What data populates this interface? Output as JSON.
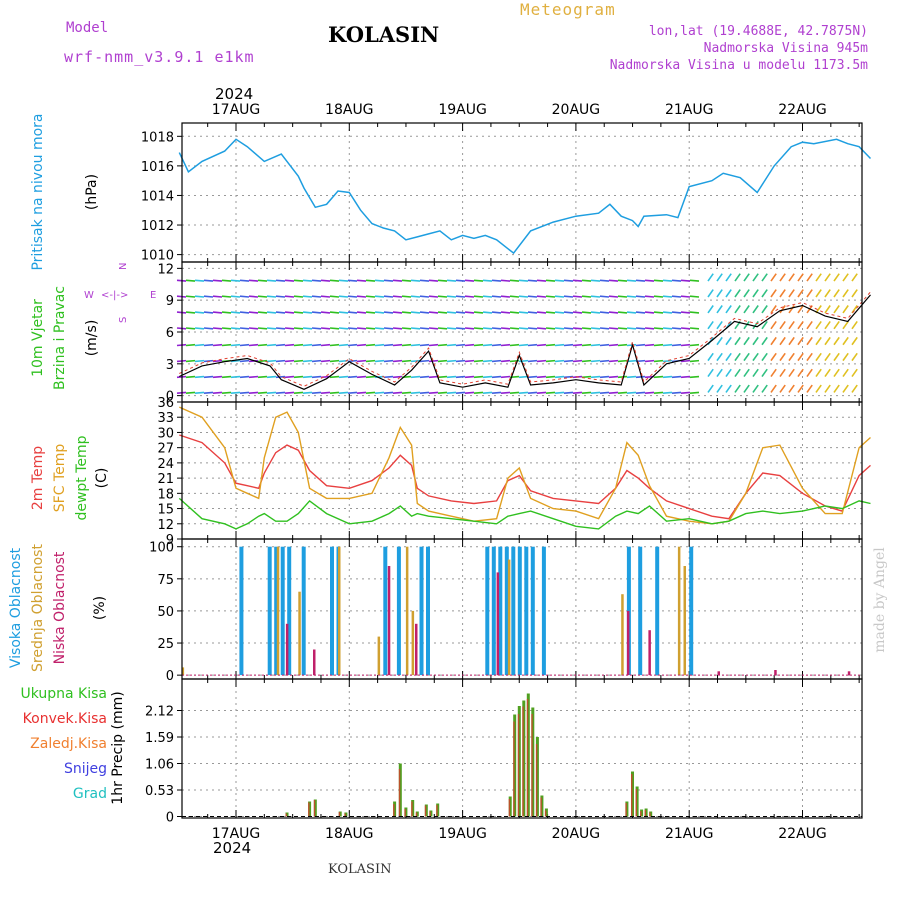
{
  "header": {
    "model_label": "Model",
    "model_name": "wrf-nmm_v3.9.1 e1km",
    "station": "KOLASIN",
    "meteogram_label": "Meteogram",
    "lonlat": "lon,lat (19.4688E, 42.7875N)",
    "elevation": "Nadmorska Visina 945m",
    "model_elevation": "Nadmorska Visina u modelu 1173.5m",
    "year": "2024"
  },
  "footer": {
    "station": "KOLASIN",
    "year": "2024",
    "credit": "made by Angel"
  },
  "x_dates": [
    "17AUG",
    "18AUG",
    "19AUG",
    "20AUG",
    "21AUG",
    "22AUG"
  ],
  "panel_labels": {
    "pressure": [
      "Pritisak na nivou mora",
      "(hPa)"
    ],
    "wind": [
      "10m Vjetar",
      "Brzina i Pravac",
      "(m/s)"
    ],
    "compass": [
      "W",
      "<",
      "-",
      "|",
      "-",
      ">",
      "E",
      "N",
      "S"
    ],
    "temp": [
      "2m Temp",
      "SFC Temp",
      "dewpt Temp",
      "(C)"
    ],
    "cloud": [
      "Visoka Oblacnost",
      "Srednja Oblacnost",
      "Niska Oblacnost",
      "(%)"
    ],
    "precip_legend": [
      "Ukupna Kisa",
      "Konvek.Kisa",
      "Zaledj.Kisa",
      "Snijeg",
      "Grad"
    ],
    "precip_axis": "1hr Precip (mm)"
  },
  "colors": {
    "pressure": "#1e9ee0",
    "temp2m": "#e84040",
    "sfc": "#e0a020",
    "dew": "#30c020",
    "cloud_high": "#1e9ee0",
    "cloud_mid": "#d0a030",
    "cloud_low": "#c0206a",
    "precip_total": "#50a020",
    "precip_conv": "#e83030",
    "precip_frozen": "#f08030",
    "snow": "#4040e0",
    "hail": "#20c0c0",
    "model": "#b040d0",
    "meteogram": "#e0b040"
  },
  "chart_data": [
    {
      "type": "line",
      "title": "Pritisak na nivou mora",
      "ylabel": "(hPa)",
      "ylim": [
        1009.5,
        1018.9
      ],
      "yticks": [
        1010,
        1012,
        1014,
        1016,
        1018
      ],
      "x_day": [
        -0.5,
        -0.42,
        -0.3,
        -0.1,
        0.0,
        0.1,
        0.25,
        0.4,
        0.55,
        0.6,
        0.7,
        0.8,
        0.9,
        1.0,
        1.1,
        1.2,
        1.3,
        1.4,
        1.5,
        1.6,
        1.7,
        1.8,
        1.9,
        2.0,
        2.1,
        2.2,
        2.3,
        2.4,
        2.45,
        2.6,
        2.8,
        3.0,
        3.2,
        3.3,
        3.4,
        3.5,
        3.55,
        3.6,
        3.8,
        3.9,
        4.0,
        4.2,
        4.3,
        4.45,
        4.6,
        4.75,
        4.9,
        5.0,
        5.1,
        5.3,
        5.4,
        5.5,
        5.6
      ],
      "series": [
        {
          "values": [
            1016.9,
            1015.6,
            1016.3,
            1017.0,
            1017.8,
            1017.3,
            1016.3,
            1016.8,
            1015.3,
            1014.5,
            1013.2,
            1013.4,
            1014.3,
            1014.2,
            1013.0,
            1012.1,
            1011.8,
            1011.6,
            1011.0,
            1011.2,
            1011.4,
            1011.6,
            1011.0,
            1011.3,
            1011.1,
            1011.3,
            1011.0,
            1010.4,
            1010.1,
            1011.6,
            1012.2,
            1012.6,
            1012.8,
            1013.4,
            1012.6,
            1012.3,
            1011.9,
            1012.6,
            1012.7,
            1012.5,
            1014.6,
            1015.0,
            1015.5,
            1015.2,
            1014.2,
            1016.0,
            1017.3,
            1017.6,
            1017.5,
            1017.8,
            1017.5,
            1017.3,
            1016.5
          ]
        }
      ]
    },
    {
      "type": "line",
      "title": "10m Vjetar Brzina i Pravac",
      "ylabel": "(m/s)",
      "ylim": [
        -0.6,
        12.6
      ],
      "yticks": [
        0,
        3,
        6,
        9,
        12
      ],
      "x_day": [
        -0.5,
        -0.3,
        -0.1,
        0.1,
        0.3,
        0.4,
        0.6,
        0.8,
        1.0,
        1.2,
        1.4,
        1.55,
        1.7,
        1.8,
        2.0,
        2.2,
        2.4,
        2.5,
        2.6,
        2.8,
        3.0,
        3.2,
        3.4,
        3.5,
        3.6,
        3.8,
        4.0,
        4.2,
        4.4,
        4.6,
        4.8,
        5.0,
        5.2,
        5.4,
        5.6
      ],
      "series": [
        {
          "values": [
            1.8,
            2.8,
            3.2,
            3.5,
            2.8,
            1.5,
            0.6,
            1.6,
            3.2,
            2.0,
            1.0,
            2.4,
            4.2,
            1.2,
            0.8,
            1.2,
            0.8,
            3.8,
            1.0,
            1.2,
            1.5,
            1.2,
            1.0,
            4.8,
            1.0,
            3.0,
            3.5,
            5.2,
            7.0,
            6.5,
            8.0,
            8.5,
            7.5,
            7.0,
            9.5
          ]
        }
      ]
    },
    {
      "type": "line",
      "title": "2m Temp / SFC Temp / dewpt Temp",
      "ylabel": "(C)",
      "ylim": [
        9,
        36
      ],
      "yticks": [
        9,
        12,
        15,
        18,
        21,
        24,
        27,
        30,
        33,
        36
      ],
      "x_day": [
        -0.5,
        -0.3,
        -0.1,
        0.0,
        0.1,
        0.2,
        0.25,
        0.35,
        0.45,
        0.55,
        0.65,
        0.8,
        1.0,
        1.2,
        1.35,
        1.45,
        1.55,
        1.6,
        1.7,
        1.9,
        2.1,
        2.3,
        2.4,
        2.5,
        2.6,
        2.8,
        3.0,
        3.2,
        3.35,
        3.45,
        3.55,
        3.65,
        3.8,
        4.0,
        4.2,
        4.35,
        4.5,
        4.65,
        4.8,
        5.0,
        5.2,
        5.35,
        5.5,
        5.6
      ],
      "series": [
        {
          "name": "2m Temp",
          "values": [
            29.5,
            28.0,
            24.0,
            20.0,
            19.5,
            19.0,
            22.0,
            26.0,
            27.5,
            26.5,
            22.5,
            19.5,
            19.0,
            20.5,
            23.0,
            25.5,
            23.5,
            19.0,
            17.5,
            16.5,
            16.0,
            16.5,
            20.5,
            21.5,
            18.5,
            17.0,
            16.5,
            16.0,
            19.0,
            22.5,
            21.0,
            19.0,
            16.5,
            15.0,
            13.5,
            13.0,
            18.0,
            22.0,
            21.5,
            18.0,
            15.5,
            14.5,
            21.5,
            23.5
          ]
        },
        {
          "name": "SFC Temp",
          "values": [
            35.0,
            33.0,
            27.0,
            19.0,
            18.0,
            17.0,
            25.0,
            33.0,
            34.0,
            30.0,
            19.0,
            17.0,
            17.0,
            18.0,
            25.0,
            31.0,
            27.5,
            16.0,
            14.5,
            13.5,
            12.5,
            13.0,
            21.0,
            23.0,
            17.0,
            15.0,
            14.5,
            13.0,
            19.0,
            28.0,
            25.5,
            19.5,
            13.5,
            12.5,
            12.0,
            12.5,
            18.0,
            27.0,
            27.5,
            19.0,
            14.0,
            14.0,
            27.0,
            29.0
          ]
        },
        {
          "name": "dewpt Temp",
          "values": [
            17.0,
            13.0,
            12.0,
            11.0,
            12.0,
            13.5,
            14.0,
            12.5,
            12.5,
            14.0,
            16.5,
            14.0,
            12.0,
            12.5,
            14.0,
            15.5,
            13.5,
            14.0,
            13.5,
            13.0,
            12.5,
            12.0,
            13.5,
            14.0,
            14.5,
            13.0,
            11.5,
            11.0,
            13.5,
            14.5,
            14.0,
            15.5,
            12.5,
            13.0,
            12.0,
            12.5,
            14.0,
            14.5,
            14.0,
            14.5,
            15.5,
            15.0,
            16.5,
            16.0
          ]
        }
      ]
    },
    {
      "type": "bar",
      "title": "Visoka / Srednja / Niska Oblacnost",
      "ylabel": "(%)",
      "ylim": [
        -3,
        106
      ],
      "yticks": [
        0,
        25,
        50,
        75,
        100
      ],
      "series": [
        {
          "name": "Visoka Oblacnost",
          "bars": [
            [
              0.03,
              0.08,
              100
            ],
            [
              0.28,
              0.5,
              100
            ],
            [
              0.58,
              0.6,
              100
            ],
            [
              0.83,
              0.92,
              100
            ],
            [
              1.3,
              1.32,
              100
            ],
            [
              1.42,
              1.46,
              100
            ],
            [
              1.62,
              1.68,
              100
            ],
            [
              2.2,
              2.62,
              100
            ],
            [
              2.7,
              2.72,
              100
            ],
            [
              3.45,
              3.5,
              100
            ],
            [
              3.55,
              3.6,
              100
            ],
            [
              3.7,
              3.75,
              100
            ],
            [
              4.0,
              4.05,
              100
            ]
          ]
        },
        {
          "name": "Srednja Oblacnost",
          "bars": [
            [
              -0.48,
              -0.46,
              6
            ],
            [
              0.36,
              0.38,
              100
            ],
            [
              0.55,
              0.57,
              65
            ],
            [
              0.9,
              0.92,
              100
            ],
            [
              1.25,
              1.27,
              30
            ],
            [
              1.5,
              1.52,
              100
            ],
            [
              1.55,
              1.57,
              50
            ],
            [
              2.4,
              2.42,
              90
            ],
            [
              3.4,
              3.42,
              63
            ],
            [
              3.9,
              3.92,
              100
            ],
            [
              3.95,
              3.97,
              85
            ]
          ]
        },
        {
          "name": "Niska Oblacnost",
          "bars": [
            [
              0.44,
              0.45,
              40
            ],
            [
              0.68,
              0.69,
              20
            ],
            [
              1.34,
              1.35,
              85
            ],
            [
              1.58,
              1.59,
              40
            ],
            [
              2.3,
              2.31,
              80
            ],
            [
              3.45,
              3.46,
              50
            ],
            [
              3.64,
              3.65,
              35
            ],
            [
              4.25,
              4.26,
              3
            ],
            [
              4.75,
              4.76,
              4
            ],
            [
              5.4,
              5.41,
              3
            ]
          ]
        }
      ]
    },
    {
      "type": "bar",
      "title": "1hr Precip",
      "ylabel": "1hr Precip (mm)",
      "ylim": [
        -0.03,
        2.75
      ],
      "yticks": [
        0,
        0.53,
        1.06,
        1.59,
        2.12
      ],
      "series": [
        {
          "name": "Ukupna Kisa",
          "x_day": [
            0.45,
            0.65,
            0.7,
            0.92,
            0.97,
            1.4,
            1.45,
            1.5,
            1.56,
            1.6,
            1.68,
            1.72,
            1.78,
            2.42,
            2.46,
            2.5,
            2.54,
            2.58,
            2.62,
            2.66,
            2.7,
            2.74,
            3.45,
            3.5,
            3.54,
            3.58,
            3.62,
            3.66
          ],
          "values": [
            0.08,
            0.3,
            0.34,
            0.1,
            0.08,
            0.3,
            1.06,
            0.18,
            0.33,
            0.1,
            0.24,
            0.12,
            0.26,
            0.4,
            2.04,
            2.21,
            2.32,
            2.46,
            2.18,
            1.59,
            0.42,
            0.16,
            0.3,
            0.9,
            0.6,
            0.14,
            0.16,
            0.1
          ]
        },
        {
          "name": "Konvek.Kisa",
          "x_day": [
            0.45,
            0.65,
            0.7,
            0.92,
            0.97,
            1.4,
            1.45,
            1.5,
            1.56,
            1.6,
            1.68,
            1.72,
            1.78,
            2.42,
            2.46,
            2.5,
            2.54,
            2.58,
            2.62,
            2.66,
            2.7,
            2.74,
            3.45,
            3.5,
            3.54,
            3.58,
            3.62,
            3.66
          ],
          "values": [
            0.06,
            0.28,
            0.33,
            0.09,
            0.06,
            0.25,
            0.95,
            0.15,
            0.3,
            0.08,
            0.22,
            0.1,
            0.23,
            0.35,
            1.9,
            2.05,
            2.2,
            2.35,
            2.05,
            1.45,
            0.38,
            0.12,
            0.27,
            0.85,
            0.55,
            0.11,
            0.13,
            0.08
          ]
        }
      ]
    }
  ]
}
